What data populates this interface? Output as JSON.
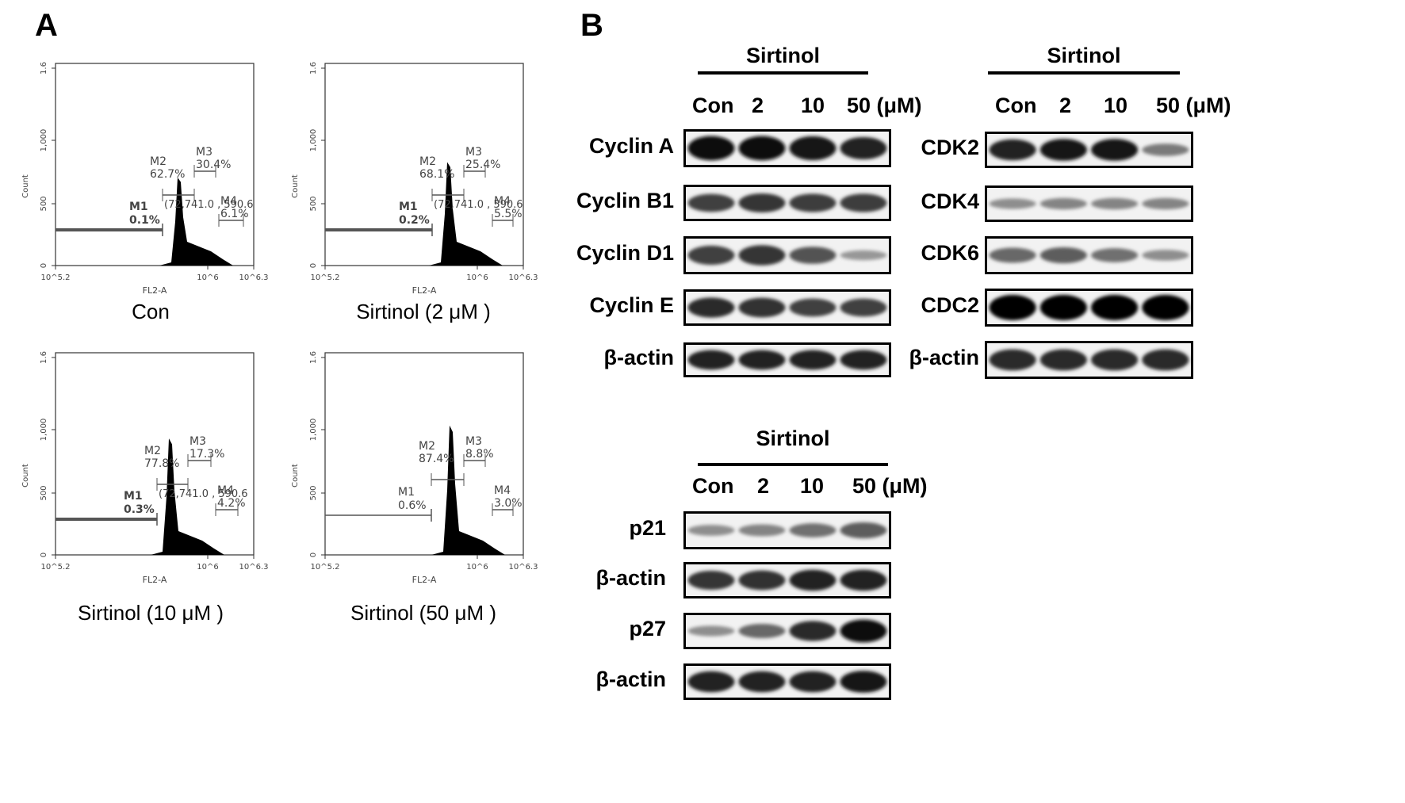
{
  "panels": {
    "a": "A",
    "b": "B"
  },
  "histogram_axis": {
    "y_title": "Count",
    "y_ticks": [
      "0",
      "500",
      "1,000",
      "1.6"
    ],
    "x_title": "FL2-A",
    "x_ticks": [
      "10^5.2",
      "10^6",
      "10^6.3"
    ]
  },
  "histograms": [
    {
      "caption": "Con",
      "gates": {
        "m1": {
          "name": "M1",
          "value": "0.1%"
        },
        "m2": {
          "name": "M2",
          "value": "62.7%"
        },
        "m3": {
          "name": "M3",
          "value": "30.4%"
        },
        "m4": {
          "name": "M4",
          "value": "6.1%"
        }
      },
      "overlay": "(72,741.0 , 590.6"
    },
    {
      "caption": "Sirtinol (2 μM )",
      "gates": {
        "m1": {
          "name": "M1",
          "value": "0.2%"
        },
        "m2": {
          "name": "M2",
          "value": "68.1%"
        },
        "m3": {
          "name": "M3",
          "value": "25.4%"
        },
        "m4": {
          "name": "M4",
          "value": "5.5%"
        }
      },
      "overlay": "(72,741.0 , 590.6"
    },
    {
      "caption": "Sirtinol (10 μM )",
      "gates": {
        "m1": {
          "name": "M1",
          "value": "0.3%"
        },
        "m2": {
          "name": "M2",
          "value": "77.8%"
        },
        "m3": {
          "name": "M3",
          "value": "17.3%"
        },
        "m4": {
          "name": "M4",
          "value": "4.2%"
        }
      },
      "overlay": "(72,741.0 , 590.6"
    },
    {
      "caption": "Sirtinol (50 μM )",
      "gates": {
        "m1": {
          "name": "M1",
          "value": "0.6%"
        },
        "m2": {
          "name": "M2",
          "value": "87.4%"
        },
        "m3": {
          "name": "M3",
          "value": "8.8%"
        },
        "m4": {
          "name": "M4",
          "value": "3.0%"
        }
      },
      "overlay": ""
    }
  ],
  "blot_groups": [
    {
      "title": "Sirtinol",
      "lanes": [
        "Con",
        "2",
        "10",
        "50 (μM)"
      ],
      "rows": [
        {
          "label": "Cyclin A",
          "intensity": [
            0.95,
            0.95,
            0.93,
            0.85
          ]
        },
        {
          "label": "Cyclin B1",
          "intensity": [
            0.7,
            0.75,
            0.72,
            0.72
          ]
        },
        {
          "label": "Cyclin D1",
          "intensity": [
            0.7,
            0.75,
            0.6,
            0.25
          ]
        },
        {
          "label": "Cyclin E",
          "intensity": [
            0.8,
            0.78,
            0.7,
            0.7
          ]
        },
        {
          "label": "β-actin",
          "intensity": [
            0.85,
            0.85,
            0.85,
            0.85
          ]
        }
      ]
    },
    {
      "title": "Sirtinol",
      "lanes": [
        "Con",
        "2",
        "10",
        "50 (μM)"
      ],
      "rows": [
        {
          "label": "CDK2",
          "intensity": [
            0.85,
            0.9,
            0.9,
            0.4
          ]
        },
        {
          "label": "CDK4",
          "intensity": [
            0.3,
            0.35,
            0.35,
            0.35
          ]
        },
        {
          "label": "CDK6",
          "intensity": [
            0.5,
            0.55,
            0.45,
            0.3
          ]
        },
        {
          "label": "CDC2",
          "intensity": [
            1.0,
            1.0,
            1.0,
            1.0
          ]
        },
        {
          "label": "β-actin",
          "intensity": [
            0.8,
            0.8,
            0.8,
            0.8
          ]
        }
      ]
    },
    {
      "title": "Sirtinol",
      "lanes": [
        "Con",
        "2",
        "10",
        "50 (μM)"
      ],
      "rows": [
        {
          "label": "p21",
          "intensity": [
            0.3,
            0.35,
            0.45,
            0.55
          ]
        },
        {
          "label": "β-actin",
          "intensity": [
            0.75,
            0.78,
            0.85,
            0.85
          ]
        },
        {
          "label": "p27",
          "intensity": [
            0.3,
            0.5,
            0.8,
            0.95
          ]
        },
        {
          "label": "β-actin",
          "intensity": [
            0.85,
            0.85,
            0.85,
            0.9
          ]
        }
      ]
    }
  ]
}
